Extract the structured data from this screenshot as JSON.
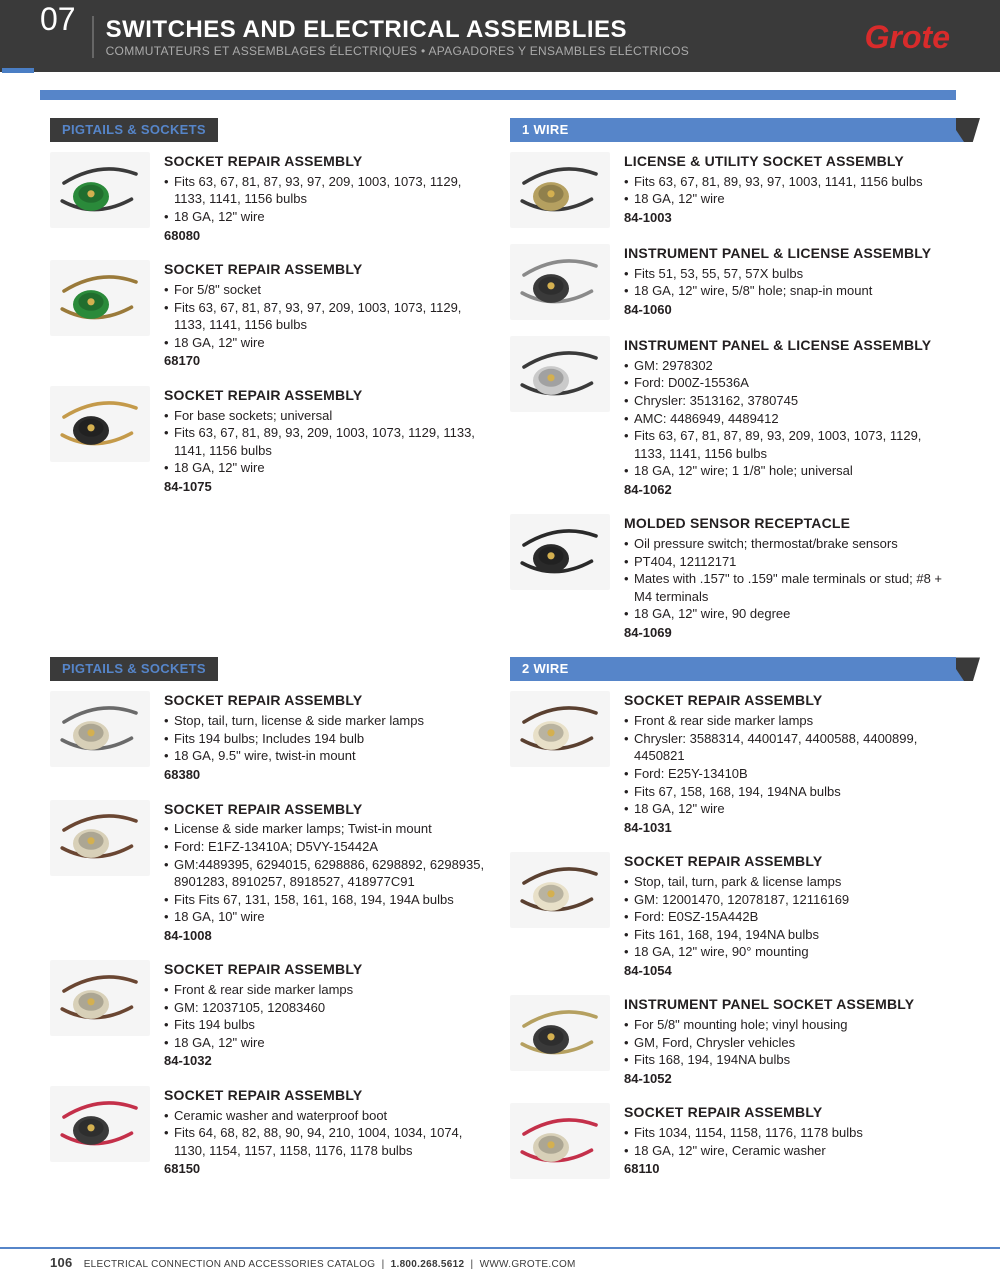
{
  "header": {
    "section_number": "07",
    "title": "SWITCHES AND ELECTRICAL ASSEMBLIES",
    "subtitle": "COMMUTATEURS ET ASSEMBLAGES ÉLECTRIQUES • APAGADORES Y ENSAMBLES ELÉCTRICOS",
    "brand": "Grote"
  },
  "colors": {
    "header_bg": "#3a3a3a",
    "accent_blue": "#5685c9",
    "brand_red": "#d82b2b",
    "text": "#231f20",
    "bg": "#ffffff"
  },
  "sections": [
    {
      "left_label": "PIGTAILS & SOCKETS",
      "right_label": "1 WIRE",
      "columns": [
        [
          {
            "title": "SOCKET REPAIR ASSEMBLY",
            "bullets": [
              "Fits 63, 67, 81, 87, 93, 97, 209, 1003, 1073, 1129, 1133, 1141, 1156 bulbs",
              "18 GA, 12\" wire"
            ],
            "sku": "68080",
            "icon": "socket-green"
          },
          {
            "title": "SOCKET REPAIR ASSEMBLY",
            "bullets": [
              "For 5/8\" socket",
              "Fits 63, 67, 81, 87, 93, 97, 209, 1003, 1073, 1129, 1133, 1141, 1156 bulbs",
              "18 GA, 12\" wire"
            ],
            "sku": "68170",
            "icon": "socket-green-2"
          },
          {
            "title": "SOCKET REPAIR ASSEMBLY",
            "bullets": [
              "For base sockets; universal",
              "Fits 63, 67, 81, 89, 93, 209, 1003, 1073, 1129, 1133, 1141, 1156 bulbs",
              "18 GA, 12\" wire"
            ],
            "sku": "84-1075",
            "icon": "socket-black"
          }
        ],
        [
          {
            "title": "LICENSE & UTILITY SOCKET ASSEMBLY",
            "bullets": [
              "Fits 63, 67, 81, 89, 93, 97, 1003, 1141, 1156 bulbs",
              "18 GA, 12\" wire"
            ],
            "sku": "84-1003",
            "icon": "socket-brass"
          },
          {
            "title": "INSTRUMENT PANEL & LICENSE ASSEMBLY",
            "bullets": [
              "Fits 51, 53, 55, 57, 57X bulbs",
              "18 GA, 12\" wire, 5/8\" hole; snap-in mount"
            ],
            "sku": "84-1060",
            "icon": "socket-small"
          },
          {
            "title": "INSTRUMENT PANEL & LICENSE ASSEMBLY",
            "bullets": [
              "GM: 2978302",
              "Ford: D00Z-15536A",
              "Chrysler: 3513162, 3780745",
              "AMC: 4486949, 4489412",
              "Fits 63, 67, 81, 87, 89, 93, 209, 1003, 1073, 1129, 1133, 1141, 1156 bulbs",
              "18 GA, 12\" wire; 1 1/8\" hole; universal"
            ],
            "sku": "84-1062",
            "icon": "socket-clear"
          },
          {
            "title": "MOLDED SENSOR RECEPTACLE",
            "bullets": [
              "Oil pressure switch; thermostat/brake sensors",
              "PT404, 12112171",
              "Mates with .157\" to .159\" male terminals or stud; #8 + M4 terminals",
              "18 GA, 12\" wire, 90 degree"
            ],
            "sku": "84-1069",
            "icon": "sensor"
          }
        ]
      ]
    },
    {
      "left_label": "PIGTAILS & SOCKETS",
      "right_label": "2 WIRE",
      "columns": [
        [
          {
            "title": "SOCKET REPAIR ASSEMBLY",
            "bullets": [
              "Stop, tail, turn, license & side marker lamps",
              "Fits 194 bulbs; Includes 194 bulb",
              "18 GA, 9.5\" wire, twist-in mount"
            ],
            "sku": "68380",
            "icon": "socket-twist"
          },
          {
            "title": "SOCKET REPAIR ASSEMBLY",
            "bullets": [
              "License & side marker lamps; Twist-in mount",
              "Ford: E1FZ-13410A; D5VY-15442A",
              "GM:4489395, 6294015, 6298886, 6298892, 6298935, 8901283, 8910257, 8918527, 418977C91",
              "Fits Fits 67, 131, 158, 161, 168, 194, 194A bulbs",
              "18 GA, 10\" wire"
            ],
            "sku": "84-1008",
            "icon": "socket-twist-br"
          },
          {
            "title": "SOCKET REPAIR ASSEMBLY",
            "bullets": [
              "Front & rear side marker lamps",
              "GM: 12037105, 12083460",
              "Fits 194 bulbs",
              "18 GA, 12\" wire"
            ],
            "sku": "84-1032",
            "icon": "socket-twist-tan"
          },
          {
            "title": "SOCKET REPAIR ASSEMBLY",
            "bullets": [
              "Ceramic washer and waterproof boot",
              "Fits 64, 68, 82, 88, 90, 94, 210, 1004, 1034, 1074, 1130, 1154, 1157, 1158, 1176, 1178 bulbs"
            ],
            "sku": "68150",
            "icon": "socket-ceramic"
          }
        ],
        [
          {
            "title": "SOCKET REPAIR ASSEMBLY",
            "bullets": [
              "Front & rear side marker lamps",
              "Chrysler: 3588314, 4400147, 4400588, 4400899, 4450821",
              "Ford: E25Y-13410B",
              "Fits 67, 158, 168, 194, 194NA bulbs",
              "18 GA, 12\" wire"
            ],
            "sku": "84-1031",
            "icon": "socket-twist-w"
          },
          {
            "title": "SOCKET REPAIR ASSEMBLY",
            "bullets": [
              "Stop, tail, turn, park & license lamps",
              "GM: 12001470, 12078187, 12116169",
              "Ford: E0SZ-15A442B",
              "Fits 161, 168, 194, 194NA bulbs",
              "18 GA, 12\" wire, 90° mounting"
            ],
            "sku": "84-1054",
            "icon": "socket-90"
          },
          {
            "title": "INSTRUMENT PANEL SOCKET ASSEMBLY",
            "bullets": [
              "For 5/8\" mounting hole; vinyl housing",
              "GM, Ford, Chrysler vehicles",
              "Fits 168, 194, 194NA bulbs"
            ],
            "sku": "84-1052",
            "icon": "socket-spring"
          },
          {
            "title": "SOCKET REPAIR ASSEMBLY",
            "bullets": [
              "Fits 1034, 1154, 1158, 1176, 1178 bulbs",
              "18 GA, 12\" wire, Ceramic washer"
            ],
            "sku": "68110",
            "icon": "socket-dual"
          }
        ]
      ]
    }
  ],
  "footer": {
    "page": "106",
    "catalog": "ELECTRICAL CONNECTION AND ACCESSORIES CATALOG",
    "phone": "1.800.268.5612",
    "url": "WWW.GROTE.COM"
  }
}
